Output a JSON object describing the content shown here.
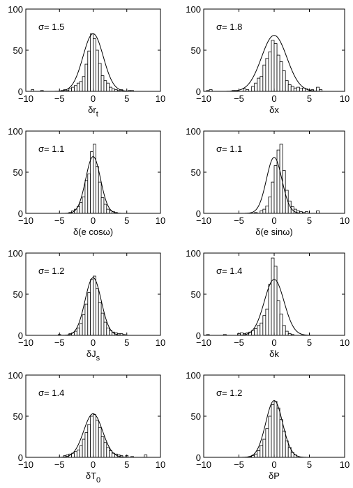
{
  "chart_data": [
    {
      "type": "bar",
      "sigma_label": "σ= 1.5",
      "xlabel": "δr",
      "xlabel_sub": "t",
      "xlim": [
        -10,
        10
      ],
      "ylim": [
        0,
        100
      ],
      "xticks": [
        -10,
        -5,
        0,
        5,
        10
      ],
      "yticks": [
        0,
        50,
        100
      ],
      "bin_width": 0.4,
      "bin_start": -10,
      "hist": [
        0,
        0,
        0,
        0,
        0,
        0,
        0,
        0,
        0,
        0,
        0,
        0,
        0,
        0,
        0,
        0,
        0,
        0,
        0,
        0,
        0,
        0,
        0,
        0,
        0,
        0,
        0,
        0,
        0,
        0,
        0,
        0,
        0,
        0,
        0,
        0,
        0,
        0,
        0,
        0,
        0,
        0,
        0,
        0,
        0,
        0,
        0,
        0,
        0,
        0,
        0,
        0,
        0
      ],
      "counts": [
        [
          -9.0,
          2
        ],
        [
          -7.6,
          1
        ],
        [
          -4.6,
          1
        ],
        [
          -4.2,
          2
        ],
        [
          -3.8,
          1
        ],
        [
          -3.4,
          3
        ],
        [
          -3.0,
          5
        ],
        [
          -2.6,
          7
        ],
        [
          -2.2,
          10
        ],
        [
          -1.8,
          12
        ],
        [
          -1.4,
          18
        ],
        [
          -1.0,
          33
        ],
        [
          -0.6,
          49
        ],
        [
          -0.2,
          70
        ],
        [
          0.2,
          64
        ],
        [
          0.6,
          50
        ],
        [
          1.0,
          34
        ],
        [
          1.4,
          19
        ],
        [
          1.8,
          13
        ],
        [
          2.2,
          10
        ],
        [
          2.6,
          5
        ],
        [
          3.0,
          3
        ],
        [
          3.4,
          2
        ],
        [
          3.8,
          1
        ],
        [
          4.2,
          2
        ],
        [
          5.4,
          1
        ],
        [
          5.8,
          1
        ]
      ],
      "gaussian": {
        "mu": 0,
        "sigma": 1.5,
        "peak": 70
      }
    },
    {
      "type": "bar",
      "sigma_label": "σ= 1.8",
      "xlabel": "δx",
      "xlabel_sub": "",
      "xlim": [
        -10,
        10
      ],
      "ylim": [
        0,
        100
      ],
      "xticks": [
        -10,
        -5,
        0,
        5,
        10
      ],
      "yticks": [
        0,
        50,
        100
      ],
      "bin_width": 0.4,
      "counts": [
        [
          -9.4,
          1
        ],
        [
          -9.0,
          2
        ],
        [
          -5.8,
          1
        ],
        [
          -5.4,
          1
        ],
        [
          -4.2,
          3
        ],
        [
          -3.8,
          2
        ],
        [
          -3.0,
          6
        ],
        [
          -2.6,
          10
        ],
        [
          -2.2,
          16
        ],
        [
          -1.8,
          18
        ],
        [
          -1.4,
          32
        ],
        [
          -1.0,
          40
        ],
        [
          -0.6,
          48
        ],
        [
          -0.2,
          62
        ],
        [
          0.2,
          58
        ],
        [
          0.6,
          44
        ],
        [
          1.0,
          36
        ],
        [
          1.4,
          25
        ],
        [
          1.8,
          13
        ],
        [
          2.2,
          8
        ],
        [
          2.6,
          6
        ],
        [
          3.0,
          4
        ],
        [
          3.4,
          5
        ],
        [
          3.8,
          3
        ],
        [
          4.2,
          4
        ],
        [
          4.6,
          3
        ],
        [
          5.4,
          2
        ],
        [
          6.2,
          5
        ],
        [
          6.6,
          2
        ]
      ],
      "gaussian": {
        "mu": 0,
        "sigma": 1.8,
        "peak": 68
      }
    },
    {
      "type": "bar",
      "sigma_label": "σ= 1.1",
      "xlabel": "δ(e cosω)",
      "xlabel_sub": "",
      "xlim": [
        -10,
        10
      ],
      "ylim": [
        0,
        100
      ],
      "xticks": [
        -10,
        -5,
        0,
        5,
        10
      ],
      "yticks": [
        0,
        50,
        100
      ],
      "bin_width": 0.4,
      "counts": [
        [
          -3.4,
          1
        ],
        [
          -3.0,
          3
        ],
        [
          -2.6,
          5
        ],
        [
          -2.2,
          8
        ],
        [
          -1.8,
          13
        ],
        [
          -1.4,
          20
        ],
        [
          -1.0,
          40
        ],
        [
          -0.6,
          48
        ],
        [
          -0.2,
          75
        ],
        [
          0.2,
          84
        ],
        [
          0.6,
          57
        ],
        [
          1.0,
          38
        ],
        [
          1.4,
          19
        ],
        [
          1.8,
          11
        ],
        [
          2.2,
          5
        ],
        [
          2.6,
          3
        ],
        [
          3.0,
          2
        ],
        [
          3.4,
          1
        ]
      ],
      "gaussian": {
        "mu": 0,
        "sigma": 1.1,
        "peak": 69
      }
    },
    {
      "type": "bar",
      "sigma_label": "σ= 1.1",
      "xlabel": "δ(e sinω)",
      "xlabel_sub": "",
      "xlim": [
        -10,
        10
      ],
      "ylim": [
        0,
        100
      ],
      "xticks": [
        -10,
        -5,
        0,
        5,
        10
      ],
      "yticks": [
        0,
        50,
        100
      ],
      "bin_width": 0.4,
      "counts": [
        [
          -2.6,
          1
        ],
        [
          -1.8,
          3
        ],
        [
          -1.4,
          5
        ],
        [
          -1.0,
          9
        ],
        [
          -0.6,
          20
        ],
        [
          -0.2,
          38
        ],
        [
          0.2,
          58
        ],
        [
          0.6,
          77
        ],
        [
          1.0,
          84
        ],
        [
          1.4,
          52
        ],
        [
          1.8,
          28
        ],
        [
          2.2,
          15
        ],
        [
          2.6,
          8
        ],
        [
          3.0,
          5
        ],
        [
          3.4,
          3
        ],
        [
          3.8,
          2
        ],
        [
          4.2,
          1
        ],
        [
          4.6,
          2
        ],
        [
          6.2,
          3
        ]
      ],
      "gaussian": {
        "mu": 0,
        "sigma": 1.1,
        "peak": 68
      }
    },
    {
      "type": "bar",
      "sigma_label": "σ= 1.2",
      "xlabel": "δJ",
      "xlabel_sub": "s",
      "xlim": [
        -10,
        10
      ],
      "ylim": [
        0,
        100
      ],
      "xticks": [
        -10,
        -5,
        0,
        5,
        10
      ],
      "yticks": [
        0,
        50,
        100
      ],
      "bin_width": 0.4,
      "counts": [
        [
          -5.0,
          1
        ],
        [
          -3.4,
          2
        ],
        [
          -3.0,
          3
        ],
        [
          -2.6,
          5
        ],
        [
          -2.2,
          9
        ],
        [
          -1.8,
          14
        ],
        [
          -1.4,
          25
        ],
        [
          -1.0,
          38
        ],
        [
          -0.6,
          52
        ],
        [
          -0.2,
          68
        ],
        [
          0.2,
          72
        ],
        [
          0.6,
          57
        ],
        [
          1.0,
          40
        ],
        [
          1.4,
          27
        ],
        [
          1.8,
          16
        ],
        [
          2.2,
          9
        ],
        [
          2.6,
          6
        ],
        [
          3.0,
          4
        ],
        [
          3.4,
          3
        ],
        [
          3.8,
          2
        ],
        [
          4.2,
          2
        ],
        [
          4.6,
          1
        ]
      ],
      "gaussian": {
        "mu": 0,
        "sigma": 1.2,
        "peak": 70
      }
    },
    {
      "type": "bar",
      "sigma_label": "σ= 1.4",
      "xlabel": "δk",
      "xlabel_sub": "",
      "xlim": [
        -10,
        10
      ],
      "ylim": [
        0,
        100
      ],
      "xticks": [
        -10,
        -5,
        0,
        5,
        10
      ],
      "yticks": [
        0,
        50,
        100
      ],
      "bin_width": 0.4,
      "counts": [
        [
          -9.4,
          1
        ],
        [
          -7.0,
          1
        ],
        [
          -5.0,
          2
        ],
        [
          -4.6,
          3
        ],
        [
          -4.2,
          2
        ],
        [
          -3.8,
          3
        ],
        [
          -3.4,
          4
        ],
        [
          -3.0,
          6
        ],
        [
          -2.6,
          8
        ],
        [
          -2.2,
          12
        ],
        [
          -1.8,
          15
        ],
        [
          -1.4,
          24
        ],
        [
          -1.0,
          32
        ],
        [
          -0.6,
          62
        ],
        [
          -0.2,
          94
        ],
        [
          0.2,
          84
        ],
        [
          0.6,
          42
        ],
        [
          1.0,
          26
        ],
        [
          1.4,
          12
        ],
        [
          1.8,
          5
        ],
        [
          2.2,
          2
        ],
        [
          2.6,
          1
        ]
      ],
      "gaussian": {
        "mu": 0,
        "sigma": 1.4,
        "peak": 68
      }
    },
    {
      "type": "bar",
      "sigma_label": "σ= 1.4",
      "xlabel": "δT",
      "xlabel_sub": "0",
      "xlim": [
        -10,
        10
      ],
      "ylim": [
        0,
        100
      ],
      "xticks": [
        -10,
        -5,
        0,
        5,
        10
      ],
      "yticks": [
        0,
        50,
        100
      ],
      "bin_width": 0.4,
      "counts": [
        [
          -4.2,
          2
        ],
        [
          -3.8,
          3
        ],
        [
          -3.4,
          4
        ],
        [
          -3.0,
          5
        ],
        [
          -2.6,
          7
        ],
        [
          -2.2,
          9
        ],
        [
          -1.8,
          14
        ],
        [
          -1.4,
          22
        ],
        [
          -1.0,
          30
        ],
        [
          -0.6,
          40
        ],
        [
          -0.2,
          50
        ],
        [
          0.2,
          52
        ],
        [
          0.6,
          45
        ],
        [
          1.0,
          36
        ],
        [
          1.4,
          25
        ],
        [
          1.8,
          18
        ],
        [
          2.2,
          12
        ],
        [
          2.6,
          8
        ],
        [
          3.0,
          5
        ],
        [
          3.4,
          4
        ],
        [
          3.8,
          3
        ],
        [
          4.2,
          2
        ],
        [
          5.0,
          2
        ],
        [
          5.8,
          1
        ],
        [
          7.8,
          3
        ]
      ],
      "gaussian": {
        "mu": 0,
        "sigma": 1.4,
        "peak": 53
      }
    },
    {
      "type": "bar",
      "sigma_label": "σ= 1.2",
      "xlabel": "δP",
      "xlabel_sub": "",
      "xlim": [
        -10,
        10
      ],
      "ylim": [
        0,
        100
      ],
      "xticks": [
        -10,
        -5,
        0,
        5,
        10
      ],
      "yticks": [
        0,
        50,
        100
      ],
      "bin_width": 0.4,
      "counts": [
        [
          -3.4,
          1
        ],
        [
          -3.0,
          2
        ],
        [
          -2.6,
          4
        ],
        [
          -2.2,
          8
        ],
        [
          -1.8,
          14
        ],
        [
          -1.4,
          22
        ],
        [
          -1.0,
          35
        ],
        [
          -0.6,
          50
        ],
        [
          -0.2,
          64
        ],
        [
          0.2,
          68
        ],
        [
          0.6,
          60
        ],
        [
          1.0,
          46
        ],
        [
          1.4,
          32
        ],
        [
          1.8,
          20
        ],
        [
          2.2,
          12
        ],
        [
          2.6,
          6
        ],
        [
          3.0,
          3
        ]
      ],
      "gaussian": {
        "mu": 0,
        "sigma": 1.2,
        "peak": 69
      }
    }
  ]
}
